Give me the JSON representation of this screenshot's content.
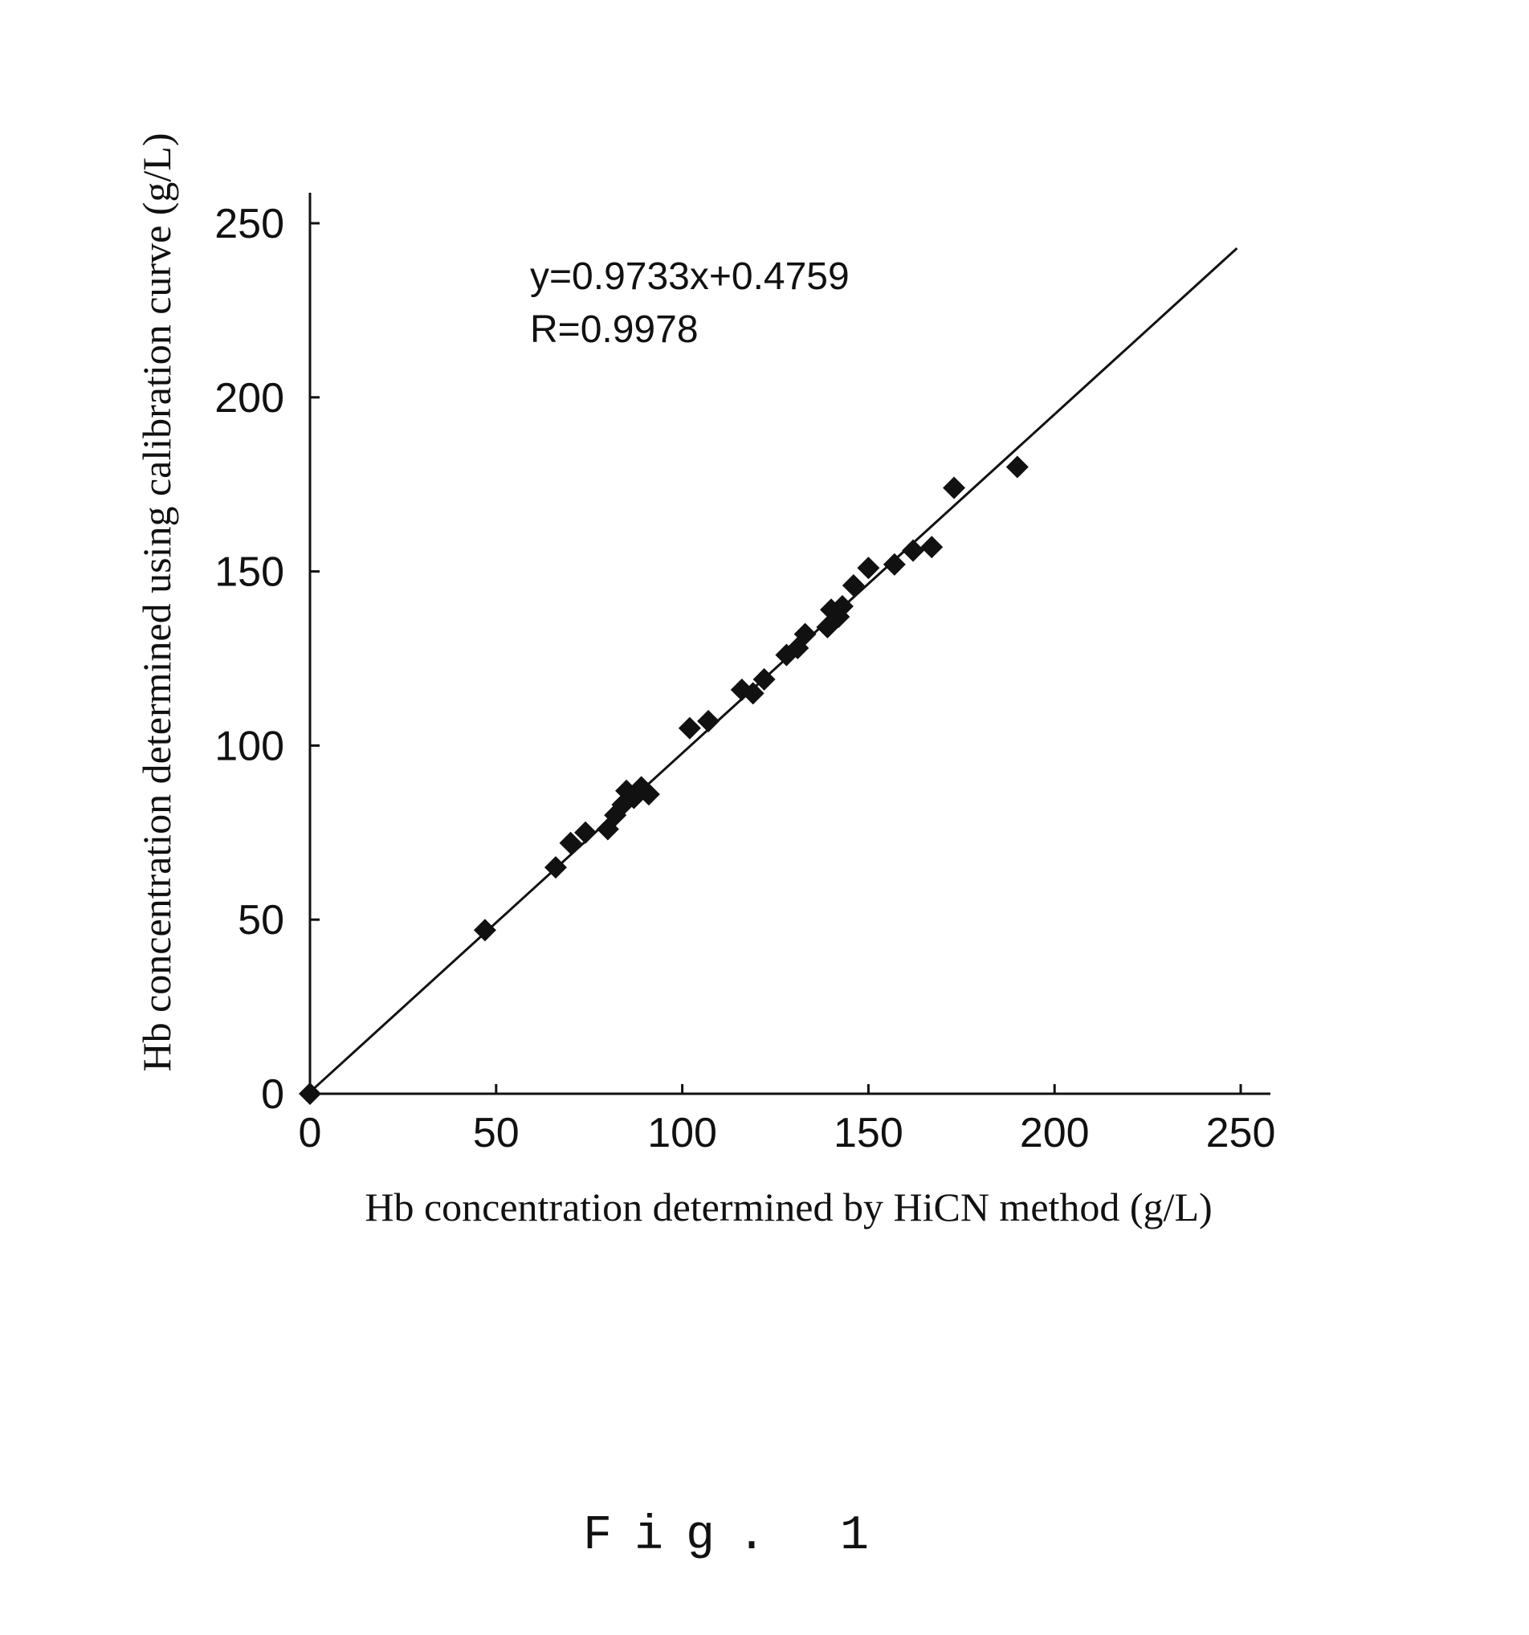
{
  "chart_data": {
    "type": "scatter",
    "title": "",
    "xlabel": "Hb concentration determined by HiCN method (g/L)",
    "ylabel": "Hb concentration determined using calibration curve (g/L)",
    "xlim": [
      0,
      250
    ],
    "ylim": [
      0,
      250
    ],
    "x_ticks": [
      "0",
      "50",
      "100",
      "150",
      "200",
      "250"
    ],
    "y_ticks": [
      "0",
      "50",
      "100",
      "150",
      "200",
      "250"
    ],
    "grid": false,
    "legend": "none",
    "marker": "diamond",
    "color": "#111111",
    "series": [
      {
        "points": [
          [
            0,
            0
          ],
          [
            47,
            47
          ],
          [
            66,
            65
          ],
          [
            70,
            72
          ],
          [
            74,
            75
          ],
          [
            80,
            76
          ],
          [
            82,
            80
          ],
          [
            84,
            83
          ],
          [
            85,
            87
          ],
          [
            87,
            85
          ],
          [
            89,
            88
          ],
          [
            91,
            86
          ],
          [
            102,
            105
          ],
          [
            107,
            107
          ],
          [
            116,
            116
          ],
          [
            119,
            115
          ],
          [
            122,
            119
          ],
          [
            128,
            126
          ],
          [
            131,
            128
          ],
          [
            133,
            132
          ],
          [
            139,
            134
          ],
          [
            140,
            139
          ],
          [
            142,
            137
          ],
          [
            143,
            140
          ],
          [
            146,
            146
          ],
          [
            150,
            151
          ],
          [
            157,
            152
          ],
          [
            162,
            156
          ],
          [
            167,
            157
          ],
          [
            173,
            174
          ],
          [
            190,
            180
          ]
        ]
      }
    ],
    "trendline": {
      "slope": 0.9733,
      "intercept": 0.4759,
      "x_range": [
        0,
        249
      ]
    },
    "annotations": [
      "y=0.9733x+0.4759",
      "R=0.9978"
    ]
  },
  "figure_caption": "Fig. 1"
}
